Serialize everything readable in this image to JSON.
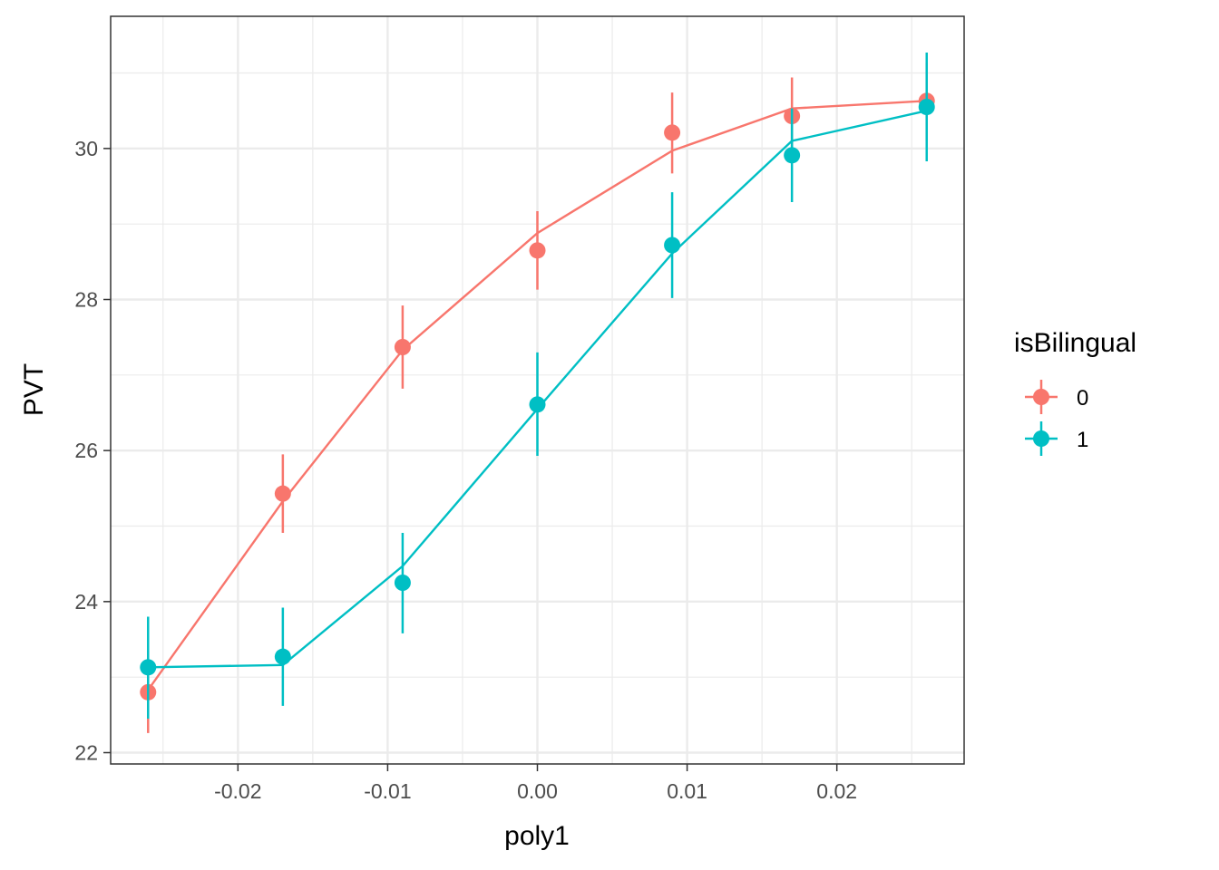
{
  "chart_data": {
    "type": "line",
    "title": "",
    "xlabel": "poly1",
    "ylabel": "PVT",
    "xlim": [
      -0.0285,
      0.0285
    ],
    "ylim": [
      21.85,
      31.75
    ],
    "x_ticks": [
      -0.02,
      -0.01,
      0.0,
      0.01,
      0.02
    ],
    "x_tick_labels": [
      "-0.02",
      "-0.01",
      "0.00",
      "0.01",
      "0.02"
    ],
    "y_ticks": [
      22,
      24,
      26,
      28,
      30
    ],
    "y_tick_labels": [
      "22",
      "24",
      "26",
      "28",
      "30"
    ],
    "grid": true,
    "legend": {
      "title": "isBilingual",
      "position": "right"
    },
    "x": [
      -0.026,
      -0.017,
      -0.009,
      0.0,
      0.009,
      0.017,
      0.026
    ],
    "series": [
      {
        "name": "0",
        "color": "#F8766D",
        "points": [
          22.8,
          25.43,
          27.37,
          28.65,
          30.21,
          30.43,
          30.63
        ],
        "err_low": [
          22.26,
          24.91,
          26.82,
          28.13,
          29.67,
          29.9,
          30.1
        ],
        "err_high": [
          23.35,
          25.95,
          27.92,
          29.17,
          30.74,
          30.94,
          31.13
        ],
        "fit": [
          22.83,
          25.33,
          27.33,
          28.88,
          29.97,
          30.53,
          30.63
        ]
      },
      {
        "name": "1",
        "color": "#00BFC4",
        "points": [
          23.13,
          23.27,
          24.25,
          26.61,
          28.72,
          29.91,
          30.55
        ],
        "err_low": [
          22.45,
          22.62,
          23.58,
          25.93,
          28.02,
          29.29,
          29.83
        ],
        "err_high": [
          23.8,
          23.92,
          24.91,
          27.3,
          29.42,
          30.53,
          31.27
        ],
        "fit": [
          23.13,
          23.16,
          24.47,
          26.55,
          28.61,
          30.1,
          30.5
        ]
      }
    ]
  }
}
